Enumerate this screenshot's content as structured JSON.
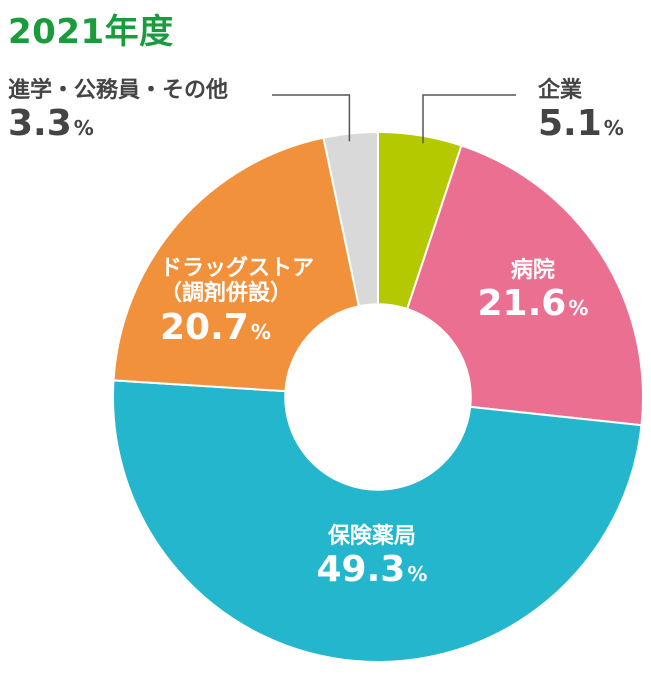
{
  "title": "2021年度",
  "title_color": "#1a9b3c",
  "chart_data": {
    "type": "pie",
    "title": "2021年度",
    "start_angle_deg": 0,
    "direction": "clockwise",
    "inner_radius_ratio": 0.35,
    "slices": [
      {
        "label": "企業",
        "value": 5.1,
        "value_text": "5.1",
        "unit": "%",
        "color": "#b5c900"
      },
      {
        "label": "病院",
        "value": 21.6,
        "value_text": "21.6",
        "unit": "%",
        "color": "#ea6f91"
      },
      {
        "label": "保険薬局",
        "value": 49.3,
        "value_text": "49.3",
        "unit": "%",
        "color": "#23b6cc"
      },
      {
        "label": "ドラッグストア\n（調剤併設）",
        "value": 20.7,
        "value_text": "20.7",
        "unit": "%",
        "color": "#f2913c"
      },
      {
        "label": "進学・公務員・その他",
        "value": 3.3,
        "value_text": "3.3",
        "unit": "%",
        "color": "#d9d9d9"
      }
    ]
  }
}
